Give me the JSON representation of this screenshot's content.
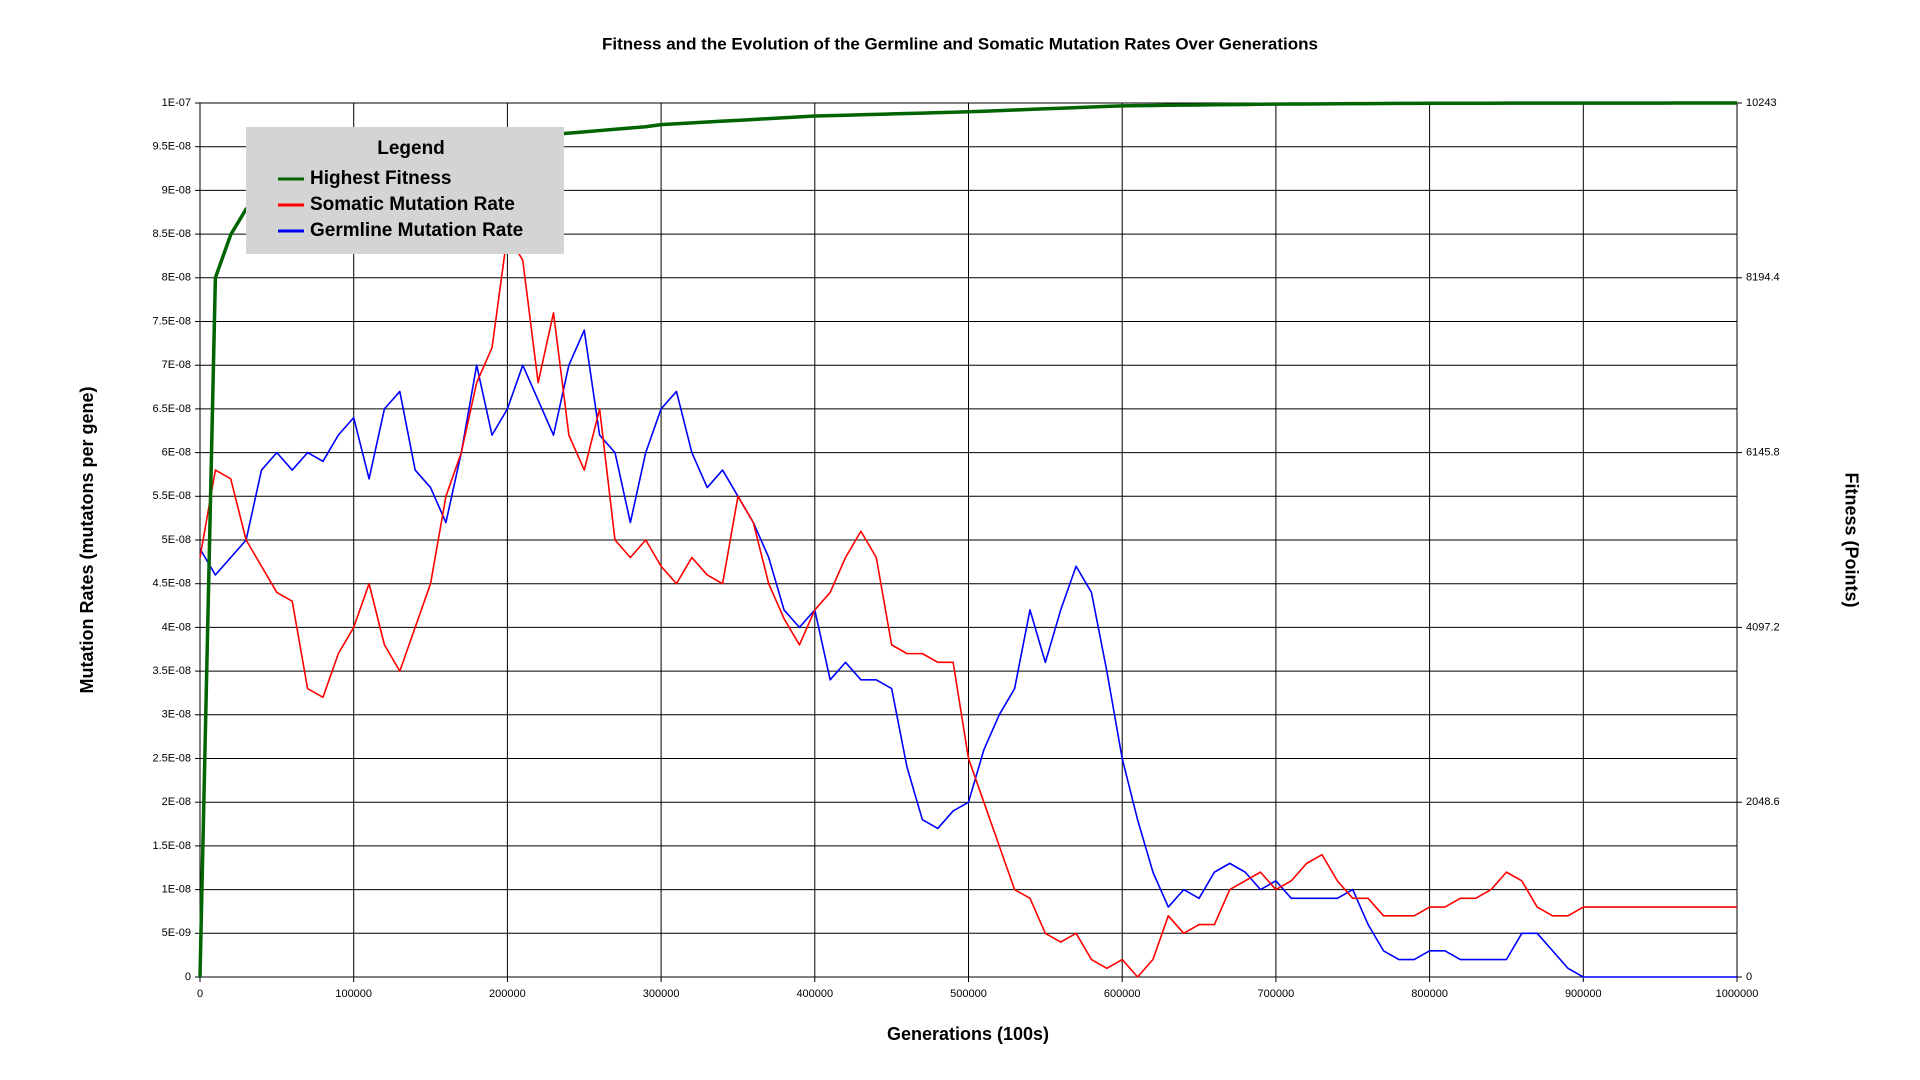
{
  "chart_data": {
    "type": "line",
    "title": "Fitness and the Evolution of the Germline and Somatic Mutation Rates Over Generations",
    "x_label": "Generations (100s)",
    "y_label": "Mutation Rates (mutatons per gene)",
    "y2_label": "Fitness (Points)",
    "legend_title": "Legend",
    "legend_position": "upper left",
    "grid": true,
    "x": [
      0,
      10000,
      20000,
      30000,
      40000,
      50000,
      60000,
      70000,
      80000,
      90000,
      100000,
      110000,
      120000,
      130000,
      140000,
      150000,
      160000,
      170000,
      180000,
      190000,
      200000,
      210000,
      220000,
      230000,
      240000,
      250000,
      260000,
      270000,
      280000,
      290000,
      300000,
      310000,
      320000,
      330000,
      340000,
      350000,
      360000,
      370000,
      380000,
      390000,
      400000,
      410000,
      420000,
      430000,
      440000,
      450000,
      460000,
      470000,
      480000,
      490000,
      500000,
      510000,
      520000,
      530000,
      540000,
      550000,
      560000,
      570000,
      580000,
      590000,
      600000,
      610000,
      620000,
      630000,
      640000,
      650000,
      660000,
      670000,
      680000,
      690000,
      700000,
      710000,
      720000,
      730000,
      740000,
      750000,
      760000,
      770000,
      780000,
      790000,
      800000,
      810000,
      820000,
      830000,
      840000,
      850000,
      860000,
      870000,
      880000,
      890000,
      900000,
      910000,
      920000,
      930000,
      940000,
      950000,
      960000,
      970000,
      980000,
      990000,
      1000000
    ],
    "xlim": [
      0,
      1000000
    ],
    "xticks": [
      0,
      100000,
      200000,
      300000,
      400000,
      500000,
      600000,
      700000,
      800000,
      900000,
      1000000
    ],
    "ylim": [
      0,
      1e-07
    ],
    "yticks": [
      0,
      {
        "value": 5e-09,
        "label": "5E-09"
      },
      {
        "value": 1e-08,
        "label": "1E-08"
      },
      {
        "value": 1.5e-08,
        "label": "1.5E-08"
      },
      {
        "value": 2e-08,
        "label": "2E-08"
      },
      {
        "value": 2.5e-08,
        "label": "2.5E-08"
      },
      {
        "value": 3e-08,
        "label": "3E-08"
      },
      {
        "value": 3.5e-08,
        "label": "3.5E-08"
      },
      {
        "value": 4e-08,
        "label": "4E-08"
      },
      {
        "value": 4.5e-08,
        "label": "4.5E-08"
      },
      {
        "value": 5e-08,
        "label": "5E-08"
      },
      {
        "value": 5.5e-08,
        "label": "5.5E-08"
      },
      {
        "value": 6e-08,
        "label": "6E-08"
      },
      {
        "value": 6.5e-08,
        "label": "6.5E-08"
      },
      {
        "value": 7e-08,
        "label": "7E-08"
      },
      {
        "value": 7.5e-08,
        "label": "7.5E-08"
      },
      {
        "value": 8e-08,
        "label": "8E-08"
      },
      {
        "value": 8.5e-08,
        "label": "8.5E-08"
      },
      {
        "value": 9e-08,
        "label": "9E-08"
      },
      {
        "value": 9.5e-08,
        "label": "9.5E-08"
      },
      {
        "value": 1e-07,
        "label": "1E-07"
      }
    ],
    "y2lim": [
      0,
      10243
    ],
    "y2ticks": [
      0,
      2048.6,
      4097.2,
      6145.8,
      8194.4,
      10243
    ],
    "series": [
      {
        "name": "Highest Fitness",
        "color": "#006400",
        "axis": "y2",
        "values": [
          0,
          8194,
          8700,
          9000,
          9180,
          9320,
          9390,
          9450,
          9500,
          9560,
          9630,
          9650,
          9680,
          9700,
          9740,
          9780,
          9790,
          9800,
          9815,
          9825,
          9830,
          9845,
          9860,
          9875,
          9890,
          9905,
          9920,
          9935,
          9950,
          9965,
          9990,
          10000,
          10010,
          10020,
          10030,
          10040,
          10050,
          10060,
          10070,
          10080,
          10090,
          10095,
          10100,
          10105,
          10110,
          10115,
          10120,
          10125,
          10130,
          10135,
          10140,
          10147,
          10154,
          10161,
          10168,
          10175,
          10182,
          10189,
          10196,
          10203,
          10210,
          10212,
          10214,
          10216,
          10218,
          10220,
          10222,
          10224,
          10226,
          10228,
          10230,
          10231,
          10232,
          10233,
          10234,
          10235,
          10236,
          10237,
          10238,
          10239,
          10240,
          10240,
          10240,
          10240,
          10240,
          10241,
          10241,
          10241,
          10241,
          10241,
          10242,
          10242,
          10242,
          10242,
          10242,
          10242,
          10243,
          10243,
          10243,
          10243,
          10243
        ]
      },
      {
        "name": "Somatic Mutation Rate",
        "color": "#ff0000",
        "values": [
          4.8e-08,
          5.8e-08,
          5.7e-08,
          5e-08,
          4.7e-08,
          4.4e-08,
          4.3e-08,
          3.3e-08,
          3.2e-08,
          3.7e-08,
          4e-08,
          4.5e-08,
          3.8e-08,
          3.5e-08,
          4e-08,
          4.5e-08,
          5.5e-08,
          6e-08,
          6.8e-08,
          7.2e-08,
          8.5e-08,
          8.2e-08,
          6.8e-08,
          7.6e-08,
          6.2e-08,
          5.8e-08,
          6.5e-08,
          5e-08,
          4.8e-08,
          5e-08,
          4.7e-08,
          4.5e-08,
          4.8e-08,
          4.6e-08,
          4.5e-08,
          5.5e-08,
          5.2e-08,
          4.5e-08,
          4.1e-08,
          3.8e-08,
          4.2e-08,
          4.4e-08,
          4.8e-08,
          5.1e-08,
          4.8e-08,
          3.8e-08,
          3.7e-08,
          3.7e-08,
          3.6e-08,
          3.6e-08,
          2.5e-08,
          2e-08,
          1.5e-08,
          1e-08,
          9e-09,
          5e-09,
          4e-09,
          5e-09,
          2e-09,
          1e-09,
          2e-09,
          0,
          2e-09,
          7e-09,
          5e-09,
          6e-09,
          6e-09,
          1e-08,
          1.1e-08,
          1.2e-08,
          1e-08,
          1.1e-08,
          1.3e-08,
          1.4e-08,
          1.1e-08,
          9e-09,
          9e-09,
          7e-09,
          7e-09,
          7e-09,
          8e-09,
          8e-09,
          9e-09,
          9e-09,
          1e-08,
          1.2e-08,
          1.1e-08,
          8e-09,
          7e-09,
          7e-09,
          8e-09,
          8e-09,
          8e-09,
          8e-09,
          8e-09,
          8e-09,
          8e-09,
          8e-09,
          8e-09,
          8e-09,
          8e-09
        ]
      },
      {
        "name": "Germline Mutation Rate",
        "color": "#0000ff",
        "values": [
          4.9e-08,
          4.6e-08,
          4.8e-08,
          5e-08,
          5.8e-08,
          6e-08,
          5.8e-08,
          6e-08,
          5.9e-08,
          6.2e-08,
          6.4e-08,
          5.7e-08,
          6.5e-08,
          6.7e-08,
          5.8e-08,
          5.6e-08,
          5.2e-08,
          6e-08,
          7e-08,
          6.2e-08,
          6.5e-08,
          7e-08,
          6.6e-08,
          6.2e-08,
          7e-08,
          7.4e-08,
          6.2e-08,
          6e-08,
          5.2e-08,
          6e-08,
          6.5e-08,
          6.7e-08,
          6e-08,
          5.6e-08,
          5.8e-08,
          5.5e-08,
          5.2e-08,
          4.8e-08,
          4.2e-08,
          4e-08,
          4.2e-08,
          3.4e-08,
          3.6e-08,
          3.4e-08,
          3.4e-08,
          3.3e-08,
          2.4e-08,
          1.8e-08,
          1.7e-08,
          1.9e-08,
          2e-08,
          2.6e-08,
          3e-08,
          3.3e-08,
          4.2e-08,
          3.6e-08,
          4.2e-08,
          4.7e-08,
          4.4e-08,
          3.5e-08,
          2.5e-08,
          1.8e-08,
          1.2e-08,
          8e-09,
          1e-08,
          9e-09,
          1.2e-08,
          1.3e-08,
          1.2e-08,
          1e-08,
          1.1e-08,
          9e-09,
          9e-09,
          9e-09,
          9e-09,
          1e-08,
          6e-09,
          3e-09,
          2e-09,
          2e-09,
          3e-09,
          3e-09,
          2e-09,
          2e-09,
          2e-09,
          2e-09,
          5e-09,
          5e-09,
          3e-09,
          1e-09,
          0,
          0,
          0,
          0,
          0,
          0,
          0,
          0,
          0,
          0,
          0
        ]
      }
    ]
  }
}
